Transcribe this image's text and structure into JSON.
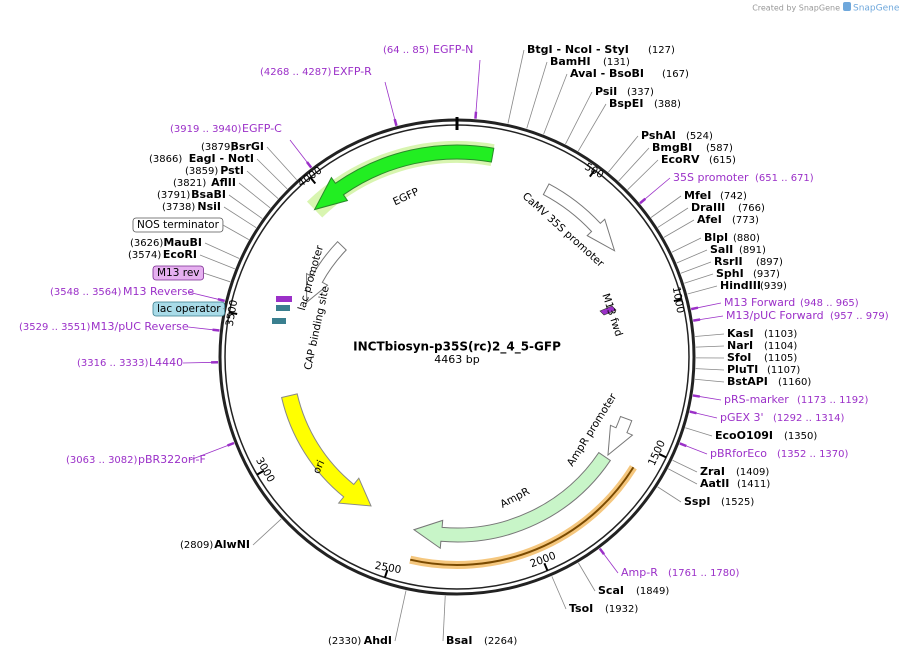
{
  "watermark": "Created by SnapGene",
  "map": {
    "name": "INCTbiosyn-p35S(rc)2_4_5-GFP",
    "length": "4463 bp"
  },
  "sites": [
    {
      "name": "BtgI  - NcoI  - StyI",
      "position": "(127)"
    },
    {
      "name": "BamHI",
      "position": "(131)"
    },
    {
      "name": "AvaI  - BsoBI",
      "position": "(167)"
    },
    {
      "name": "PsiI",
      "position": "(337)"
    },
    {
      "name": "BspEI",
      "position": "(388)"
    },
    {
      "name": "PshAI",
      "position": "(524)"
    },
    {
      "name": "BmgBI",
      "position": "(587)"
    },
    {
      "name": "EcoRV",
      "position": "(615)"
    },
    {
      "name": "MfeI",
      "position": "(742)"
    },
    {
      "name": "DraIII",
      "position": "(766)"
    },
    {
      "name": "AfeI",
      "position": "(773)"
    },
    {
      "name": "BlpI",
      "position": "(880)"
    },
    {
      "name": "SalI",
      "position": "(891)"
    },
    {
      "name": "RsrII",
      "position": "(897)"
    },
    {
      "name": "SphI",
      "position": "(937)"
    },
    {
      "name": "HindIII",
      "position": "(939)"
    },
    {
      "name": "KasI",
      "position": "(1103)"
    },
    {
      "name": "NarI",
      "position": "(1104)"
    },
    {
      "name": "SfoI",
      "position": "(1105)"
    },
    {
      "name": "PluTI",
      "position": "(1107)"
    },
    {
      "name": "BstAPI",
      "position": "(1160)"
    },
    {
      "name": "EcoO109I",
      "position": "(1350)"
    },
    {
      "name": "ZraI",
      "position": "(1409)"
    },
    {
      "name": "AatII",
      "position": "(1411)"
    },
    {
      "name": "SspI",
      "position": "(1525)"
    },
    {
      "name": "ScaI",
      "position": "(1849)"
    },
    {
      "name": "TsoI",
      "position": "(1932)"
    },
    {
      "name": "BsaI",
      "position": "(2264)"
    },
    {
      "name": "AhdI",
      "position": "(2330)"
    },
    {
      "name": "AlwNI",
      "position": "(2809)"
    },
    {
      "name": "EcoRI",
      "position": "(3574)"
    },
    {
      "name": "MauBI",
      "position": "(3626)"
    },
    {
      "name": "NsiI",
      "position": "(3738)"
    },
    {
      "name": "BsaBI",
      "position": "(3791)"
    },
    {
      "name": "AflII",
      "position": "(3821)"
    },
    {
      "name": "PstI",
      "position": "(3859)"
    },
    {
      "name": "EagI  - NotI",
      "position": "(3866)"
    },
    {
      "name": "BsrGI",
      "position": "(3879)"
    }
  ],
  "primers": [
    {
      "name": "EGFP-N",
      "range": "(64 .. 85)"
    },
    {
      "name": "EXFP-R",
      "range": "(4268 .. 4287)"
    },
    {
      "name": "EGFP-C",
      "range": "(3919 .. 3940)"
    },
    {
      "name": "35S promoter",
      "range": "(651 .. 671)"
    },
    {
      "name": "M13 Forward",
      "range": "(948 .. 965)"
    },
    {
      "name": "M13/pUC Forward",
      "range": "(957 .. 979)"
    },
    {
      "name": "pRS-marker",
      "range": "(1173 .. 1192)"
    },
    {
      "name": "pGEX 3'",
      "range": "(1292 .. 1314)"
    },
    {
      "name": "pBRforEco",
      "range": "(1352 .. 1370)"
    },
    {
      "name": "Amp-R",
      "range": "(1761 .. 1780)"
    },
    {
      "name": "M13 Reverse",
      "range": "(3548 .. 3564)"
    },
    {
      "name": "M13/pUC Reverse",
      "range": "(3529 .. 3551)"
    },
    {
      "name": "L4440",
      "range": "(3316 .. 3333)"
    },
    {
      "name": "pBR322ori-F",
      "range": "(3063 .. 3082)"
    }
  ],
  "boxed": [
    "NOS terminator",
    "M13 rev",
    "lac operator"
  ],
  "features": [
    "EGFP",
    "CaMV 35S promoter",
    "M13 fwd",
    "lac promoter",
    "CAP binding site",
    "ori",
    "AmpR",
    "AmpR promoter"
  ],
  "ticks": [
    "500",
    "1000",
    "1500",
    "2000",
    "2500",
    "3000",
    "3500",
    "4000"
  ]
}
